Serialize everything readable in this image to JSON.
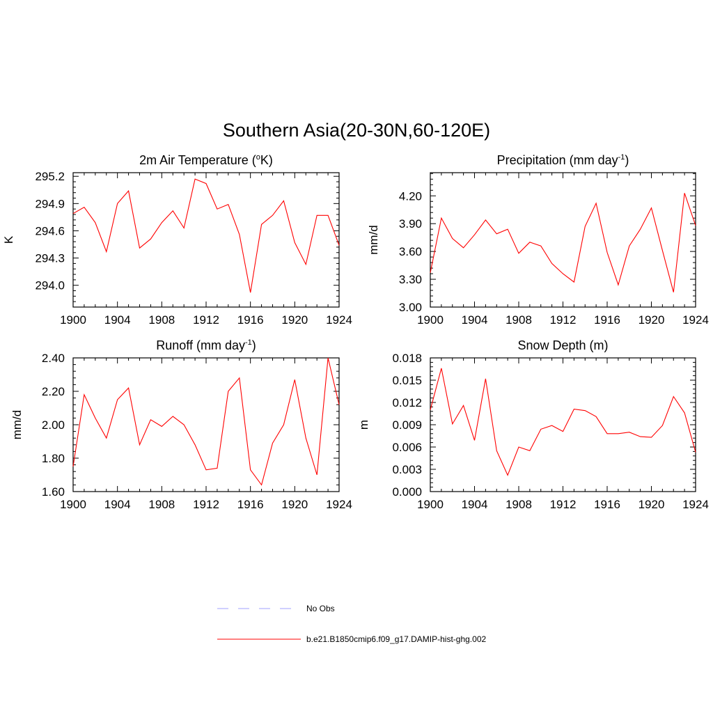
{
  "figure": {
    "title": "Southern Asia(20-30N,60-120E)"
  },
  "legend": {
    "items": [
      {
        "label": "No Obs",
        "color": "#a0a0ff",
        "dash": true
      },
      {
        "label": "b.e21.B1850cmip6.f09_g17.DAMIP-hist-ghg.002",
        "color": "#ff0000",
        "dash": false
      }
    ]
  },
  "chart_data": [
    {
      "type": "line",
      "title": "2m Air Temperature (",
      "title_sup": "o",
      "title_after": "K)",
      "ylabel": "K",
      "xlim": [
        1900,
        1924
      ],
      "ylim": [
        293.76,
        295.24
      ],
      "xticks": [
        1900,
        1904,
        1908,
        1912,
        1916,
        1920,
        1924
      ],
      "xtick_labels": [
        "1900",
        "1904",
        "1908",
        "1912",
        "1916",
        "1920",
        "1924"
      ],
      "yticks": [
        294.0,
        294.3,
        294.6,
        294.9,
        295.2
      ],
      "ytick_labels": [
        "294.0",
        "294.3",
        "294.6",
        "294.9",
        "295.2"
      ],
      "series": [
        {
          "color": "#ff0000",
          "x": [
            1900,
            1901,
            1902,
            1903,
            1904,
            1905,
            1906,
            1907,
            1908,
            1909,
            1910,
            1911,
            1912,
            1913,
            1914,
            1915,
            1916,
            1917,
            1918,
            1919,
            1920,
            1921,
            1922,
            1923,
            1924
          ],
          "values": [
            294.79,
            294.86,
            294.69,
            294.37,
            294.9,
            295.04,
            294.41,
            294.51,
            294.69,
            294.82,
            294.63,
            295.17,
            295.12,
            294.84,
            294.89,
            294.56,
            293.92,
            294.67,
            294.77,
            294.93,
            294.47,
            294.23,
            294.77,
            294.77,
            294.44
          ]
        }
      ]
    },
    {
      "type": "line",
      "title": "Precipitation (mm day",
      "title_sup": "-1",
      "title_after": ")",
      "ylabel": "mm/d",
      "xlim": [
        1900,
        1924
      ],
      "ylim": [
        3.0,
        4.45
      ],
      "xticks": [
        1900,
        1904,
        1908,
        1912,
        1916,
        1920,
        1924
      ],
      "xtick_labels": [
        "1900",
        "1904",
        "1908",
        "1912",
        "1916",
        "1920",
        "1924"
      ],
      "yticks": [
        3.0,
        3.3,
        3.6,
        3.9,
        4.2
      ],
      "ytick_labels": [
        "3.00",
        "3.30",
        "3.60",
        "3.90",
        "4.20"
      ],
      "series": [
        {
          "color": "#ff0000",
          "x": [
            1900,
            1901,
            1902,
            1903,
            1904,
            1905,
            1906,
            1907,
            1908,
            1909,
            1910,
            1911,
            1912,
            1913,
            1914,
            1915,
            1916,
            1917,
            1918,
            1919,
            1920,
            1921,
            1922,
            1923,
            1924
          ],
          "values": [
            3.37,
            3.96,
            3.74,
            3.64,
            3.78,
            3.94,
            3.79,
            3.84,
            3.58,
            3.7,
            3.66,
            3.47,
            3.36,
            3.27,
            3.87,
            4.12,
            3.59,
            3.24,
            3.66,
            3.84,
            4.07,
            3.61,
            3.16,
            4.23,
            3.88
          ]
        }
      ]
    },
    {
      "type": "line",
      "title": "Runoff (mm day",
      "title_sup": "-1",
      "title_after": ")",
      "ylabel": "mm/d",
      "xlim": [
        1900,
        1924
      ],
      "ylim": [
        1.6,
        2.4
      ],
      "xticks": [
        1900,
        1904,
        1908,
        1912,
        1916,
        1920,
        1924
      ],
      "xtick_labels": [
        "1900",
        "1904",
        "1908",
        "1912",
        "1916",
        "1920",
        "1924"
      ],
      "yticks": [
        1.6,
        1.8,
        2.0,
        2.2,
        2.4
      ],
      "ytick_labels": [
        "1.60",
        "1.80",
        "2.00",
        "2.20",
        "2.40"
      ],
      "series": [
        {
          "color": "#ff0000",
          "x": [
            1900,
            1901,
            1902,
            1903,
            1904,
            1905,
            1906,
            1907,
            1908,
            1909,
            1910,
            1911,
            1912,
            1913,
            1914,
            1915,
            1916,
            1917,
            1918,
            1919,
            1920,
            1921,
            1922,
            1923,
            1924
          ],
          "values": [
            1.75,
            2.18,
            2.04,
            1.92,
            2.15,
            2.22,
            1.88,
            2.03,
            1.99,
            2.05,
            2.0,
            1.88,
            1.73,
            1.74,
            2.2,
            2.28,
            1.73,
            1.64,
            1.89,
            2.0,
            2.27,
            1.92,
            1.7,
            2.4,
            2.12
          ]
        }
      ]
    },
    {
      "type": "line",
      "title": "Snow Depth (m)",
      "title_sup": "",
      "title_after": "",
      "ylabel": "m",
      "xlim": [
        1900,
        1924
      ],
      "ylim": [
        0.0,
        0.018
      ],
      "xticks": [
        1900,
        1904,
        1908,
        1912,
        1916,
        1920,
        1924
      ],
      "xtick_labels": [
        "1900",
        "1904",
        "1908",
        "1912",
        "1916",
        "1920",
        "1924"
      ],
      "yticks": [
        0.0,
        0.003,
        0.006,
        0.009,
        0.012,
        0.015,
        0.018
      ],
      "ytick_labels": [
        "0.000",
        "0.003",
        "0.006",
        "0.009",
        "0.012",
        "0.015",
        "0.018"
      ],
      "series": [
        {
          "color": "#ff0000",
          "x": [
            1900,
            1901,
            1902,
            1903,
            1904,
            1905,
            1906,
            1907,
            1908,
            1909,
            1910,
            1911,
            1912,
            1913,
            1914,
            1915,
            1916,
            1917,
            1918,
            1919,
            1920,
            1921,
            1922,
            1923,
            1924
          ],
          "values": [
            0.011,
            0.0166,
            0.0091,
            0.0116,
            0.0069,
            0.0152,
            0.0055,
            0.0022,
            0.006,
            0.0055,
            0.0084,
            0.0089,
            0.0081,
            0.0111,
            0.0109,
            0.0101,
            0.0078,
            0.0078,
            0.008,
            0.0074,
            0.0073,
            0.0089,
            0.0128,
            0.0106,
            0.0053
          ]
        }
      ]
    }
  ]
}
